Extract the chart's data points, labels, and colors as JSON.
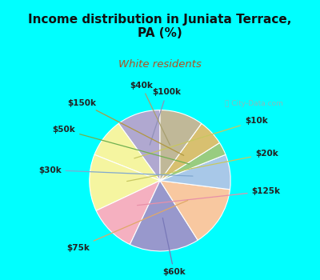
{
  "title": "Income distribution in Juniata Terrace,\nPA (%)",
  "subtitle": "White residents",
  "title_color": "#111111",
  "subtitle_color": "#b05020",
  "bg_cyan": "#00ffff",
  "bg_inner": "#e8f5ee",
  "labels": [
    "$100k",
    "$10k",
    "$20k",
    "$125k",
    "$60k",
    "$75k",
    "$30k",
    "$50k",
    "$150k",
    "$40k"
  ],
  "values": [
    10,
    9,
    13,
    11,
    16,
    14,
    8,
    3,
    6,
    10
  ],
  "colors": [
    "#b0a8d0",
    "#f5f5a0",
    "#f5f5a0",
    "#f5b0c0",
    "#9898cc",
    "#f8c8a0",
    "#a8c8e8",
    "#98cc80",
    "#d8c070",
    "#c0b898"
  ],
  "line_colors": [
    "#9090b8",
    "#c8c860",
    "#c8c860",
    "#e890a8",
    "#7878b8",
    "#e0a868",
    "#80a8d0",
    "#70b050",
    "#b09840",
    "#a8a070"
  ],
  "startangle": 90
}
